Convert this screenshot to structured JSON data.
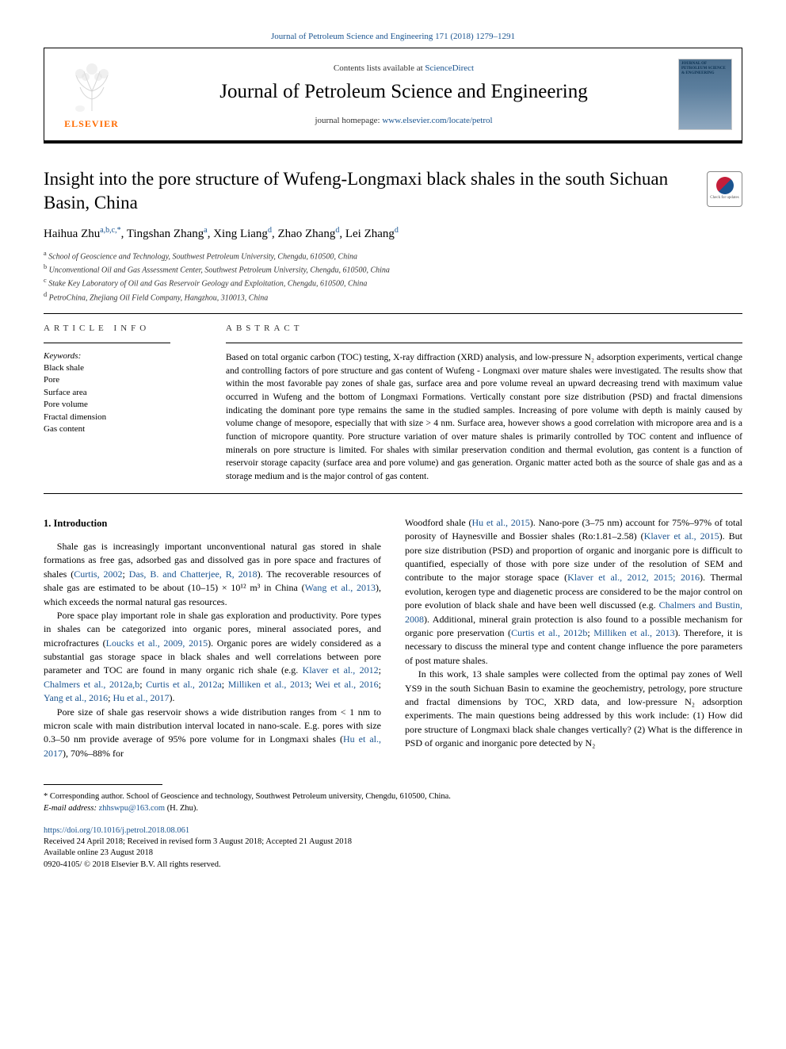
{
  "top_link": "Journal of Petroleum Science and Engineering 171 (2018) 1279–1291",
  "header": {
    "elsevier": "ELSEVIER",
    "contents_prefix": "Contents lists available at ",
    "contents_link": "ScienceDirect",
    "journal_title": "Journal of Petroleum Science and Engineering",
    "homepage_prefix": "journal homepage: ",
    "homepage_link": "www.elsevier.com/locate/petrol",
    "cover_text": "JOURNAL OF PETROLEUM SCIENCE & ENGINEERING"
  },
  "check_updates": "Check for updates",
  "title": "Insight into the pore structure of Wufeng-Longmaxi black shales in the south Sichuan Basin, China",
  "authors_html": "Haihua Zhu<sup>a,b,c,*</sup>, Tingshan Zhang<sup>a</sup>, Xing Liang<sup>d</sup>, Zhao Zhang<sup>d</sup>, Lei Zhang<sup>d</sup>",
  "affiliations": [
    "a School of Geoscience and Technology, Southwest Petroleum University, Chengdu, 610500, China",
    "b Unconventional Oil and Gas Assessment Center, Southwest Petroleum University, Chengdu, 610500, China",
    "c Stake Key Laboratory of Oil and Gas Reservoir Geology and Exploitation, Chengdu, 610500, China",
    "d PetroChina, Zhejiang Oil Field Company, Hangzhou, 310013, China"
  ],
  "info_heading": "ARTICLE INFO",
  "keywords_label": "Keywords:",
  "keywords": [
    "Black shale",
    "Pore",
    "Surface area",
    "Pore volume",
    "Fractal dimension",
    "Gas content"
  ],
  "abstract_heading": "ABSTRACT",
  "abstract": "Based on total organic carbon (TOC) testing, X-ray diffraction (XRD) analysis, and low-pressure N₂ adsorption experiments, vertical change and controlling factors of pore structure and gas content of Wufeng - Longmaxi over mature shales were investigated. The results show that within the most favorable pay zones of shale gas, surface area and pore volume reveal an upward decreasing trend with maximum value occurred in Wufeng and the bottom of Longmaxi Formations. Vertically constant pore size distribution (PSD) and fractal dimensions indicating the dominant pore type remains the same in the studied samples. Increasing of pore volume with depth is mainly caused by volume change of mesopore, especially that with size > 4 nm. Surface area, however shows a good correlation with micropore area and is a function of micropore quantity. Pore structure variation of over mature shales is primarily controlled by TOC content and influence of minerals on pore structure is limited. For shales with similar preservation condition and thermal evolution, gas content is a function of reservoir storage capacity (surface area and pore volume) and gas generation. Organic matter acted both as the source of shale gas and as a storage medium and is the major control of gas content.",
  "section1_heading": "1. Introduction",
  "col1_paras": [
    "Shale gas is increasingly important unconventional natural gas stored in shale formations as free gas, adsorbed gas and dissolved gas in pore space and fractures of shales (<span class=\"ref\">Curtis, 2002</span>; <span class=\"ref\">Das, B. and Chatterjee, R, 2018</span>). The recoverable resources of shale gas are estimated to be about (10–15) × 10¹² m³ in China (<span class=\"ref\">Wang et al., 2013</span>), which exceeds the normal natural gas resources.",
    "Pore space play important role in shale gas exploration and productivity. Pore types in shales can be categorized into organic pores, mineral associated pores, and microfractures (<span class=\"ref\">Loucks et al., 2009, 2015</span>). Organic pores are widely considered as a substantial gas storage space in black shales and well correlations between pore parameter and TOC are found in many organic rich shale (e.g. <span class=\"ref\">Klaver et al., 2012</span>; <span class=\"ref\">Chalmers et al., 2012a,b</span>; <span class=\"ref\">Curtis et al., 2012a</span>; <span class=\"ref\">Milliken et al., 2013</span>; <span class=\"ref\">Wei et al., 2016</span>; <span class=\"ref\">Yang et al., 2016</span>; <span class=\"ref\">Hu et al., 2017</span>).",
    "Pore size of shale gas reservoir shows a wide distribution ranges from < 1 nm to micron scale with main distribution interval located in nano-scale. E.g. pores with size 0.3–50 nm provide average of 95% pore volume for in Longmaxi shales (<span class=\"ref\">Hu et al., 2017</span>), 70%–88% for"
  ],
  "col2_paras": [
    "Woodford shale (<span class=\"ref\">Hu et al., 2015</span>). Nano-pore (3–75 nm) account for 75%–97% of total porosity of Haynesville and Bossier shales (Ro:1.81–2.58) (<span class=\"ref\">Klaver et al., 2015</span>). But pore size distribution (PSD) and proportion of organic and inorganic pore is difficult to quantified, especially of those with pore size under of the resolution of SEM and contribute to the major storage space (<span class=\"ref\">Klaver et al., 2012, 2015; 2016</span>). Thermal evolution, kerogen type and diagenetic process are considered to be the major control on pore evolution of black shale and have been well discussed (e.g. <span class=\"ref\">Chalmers and Bustin, 2008</span>). Additional, mineral grain protection is also found to a possible mechanism for organic pore preservation (<span class=\"ref\">Curtis et al., 2012b</span>; <span class=\"ref\">Milliken et al., 2013</span>). Therefore, it is necessary to discuss the mineral type and content change influence the pore parameters of post mature shales.",
    "In this work, 13 shale samples were collected from the optimal pay zones of Well YS9 in the south Sichuan Basin to examine the geochemistry, petrology, pore structure and fractal dimensions by TOC, XRD data, and low-pressure N₂ adsorption experiments. The main questions being addressed by this work include: (1) How did pore structure of Longmaxi black shale changes vertically? (2) What is the difference in PSD of organic and inorganic pore detected by N₂"
  ],
  "corresponding": {
    "line1": "* Corresponding author. School of Geoscience and technology, Southwest Petroleum university, Chengdu, 610500, China.",
    "email_label": "E-mail address: ",
    "email": "zhhswpu@163.com",
    "email_suffix": " (H. Zhu)."
  },
  "doi": "https://doi.org/10.1016/j.petrol.2018.08.061",
  "received": "Received 24 April 2018; Received in revised form 3 August 2018; Accepted 21 August 2018",
  "available": "Available online 23 August 2018",
  "copyright": "0920-4105/ © 2018 Elsevier B.V. All rights reserved."
}
